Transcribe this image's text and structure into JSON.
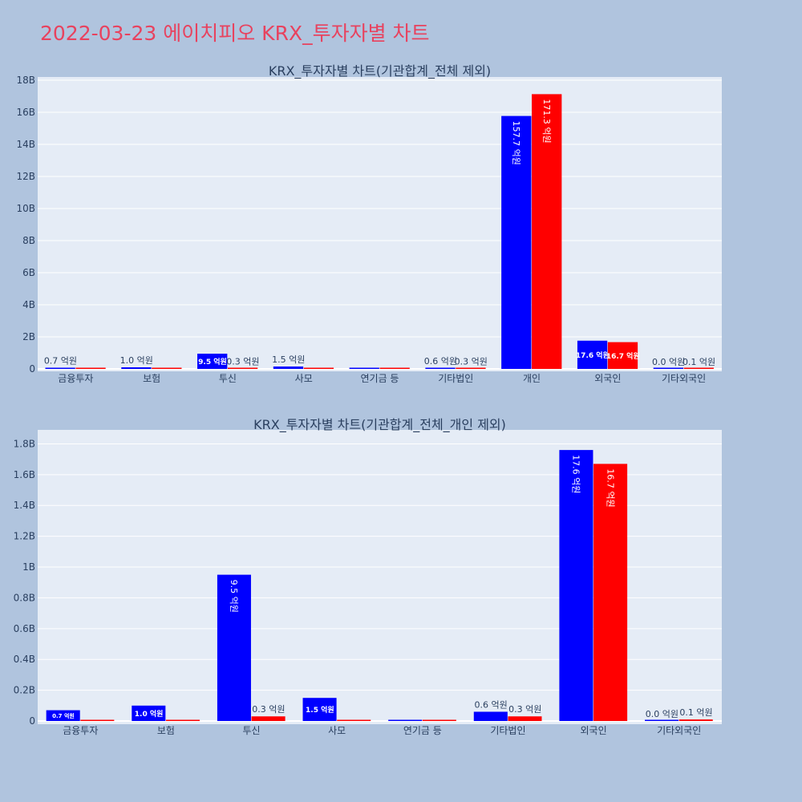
{
  "page": {
    "title": "2022-03-23 에이치피오 KRX_투자자별 차트"
  },
  "colors": {
    "background": "#b0c4de",
    "plot_bg": "#e5ecf6",
    "title": "#e8425e",
    "series_buy": "#0000ff",
    "series_sell": "#ff0000"
  },
  "chart_data": [
    {
      "type": "bar",
      "title": "KRX_투자자별 차트(기관합계_전체 제외)",
      "categories": [
        "금융투자",
        "보험",
        "투신",
        "사모",
        "연기금 등",
        "기타법인",
        "개인",
        "외국인",
        "기타외국인"
      ],
      "series": [
        {
          "color": "#0000ff",
          "values": [
            70000000,
            100000000,
            950000000,
            150000000,
            0,
            60000000,
            15770000000,
            1760000000,
            0
          ],
          "labels": [
            "0.7 억원",
            "1.0 억원",
            "9.5 억원",
            "1.5 억원",
            "",
            "0.6 억원",
            "157.7 억원",
            "17.6 억원",
            "0.0 억원"
          ]
        },
        {
          "color": "#ff0000",
          "values": [
            0,
            0,
            30000000,
            0,
            0,
            30000000,
            17130000000,
            1670000000,
            10000000
          ],
          "labels": [
            "",
            "",
            "0.3 억원",
            "",
            "",
            "0.3 억원",
            "171.3 억원",
            "16.7 억원",
            "0.1 억원"
          ]
        }
      ],
      "ylim": [
        0,
        18000000000
      ],
      "yticks": [
        0,
        2000000000,
        4000000000,
        6000000000,
        8000000000,
        10000000000,
        12000000000,
        14000000000,
        16000000000,
        18000000000
      ],
      "ytick_labels": [
        "0",
        "2B",
        "4B",
        "6B",
        "8B",
        "10B",
        "12B",
        "14B",
        "16B",
        "18B"
      ],
      "grid": true
    },
    {
      "type": "bar",
      "title": "KRX_투자자별 차트(기관합계_전체_개인 제외)",
      "categories": [
        "금융투자",
        "보험",
        "투신",
        "사모",
        "연기금 등",
        "기타법인",
        "외국인",
        "기타외국인"
      ],
      "series": [
        {
          "color": "#0000ff",
          "values": [
            70000000,
            100000000,
            950000000,
            150000000,
            0,
            60000000,
            1760000000,
            0
          ],
          "labels": [
            "0.7 억원",
            "1.0 억원",
            "9.5 억원",
            "1.5 억원",
            "",
            "0.6 억원",
            "17.6 억원",
            "0.0 억원"
          ]
        },
        {
          "color": "#ff0000",
          "values": [
            0,
            0,
            30000000,
            0,
            0,
            30000000,
            1670000000,
            10000000
          ],
          "labels": [
            "",
            "",
            "0.3 억원",
            "",
            "",
            "0.3 억원",
            "16.7 억원",
            "0.1 억원"
          ]
        }
      ],
      "ylim": [
        0,
        1870000000
      ],
      "yticks": [
        0,
        200000000,
        400000000,
        600000000,
        800000000,
        1000000000,
        1200000000,
        1400000000,
        1600000000,
        1800000000
      ],
      "ytick_labels": [
        "0",
        "0.2B",
        "0.4B",
        "0.6B",
        "0.8B",
        "1B",
        "1.2B",
        "1.4B",
        "1.6B",
        "1.8B"
      ],
      "grid": true
    }
  ]
}
